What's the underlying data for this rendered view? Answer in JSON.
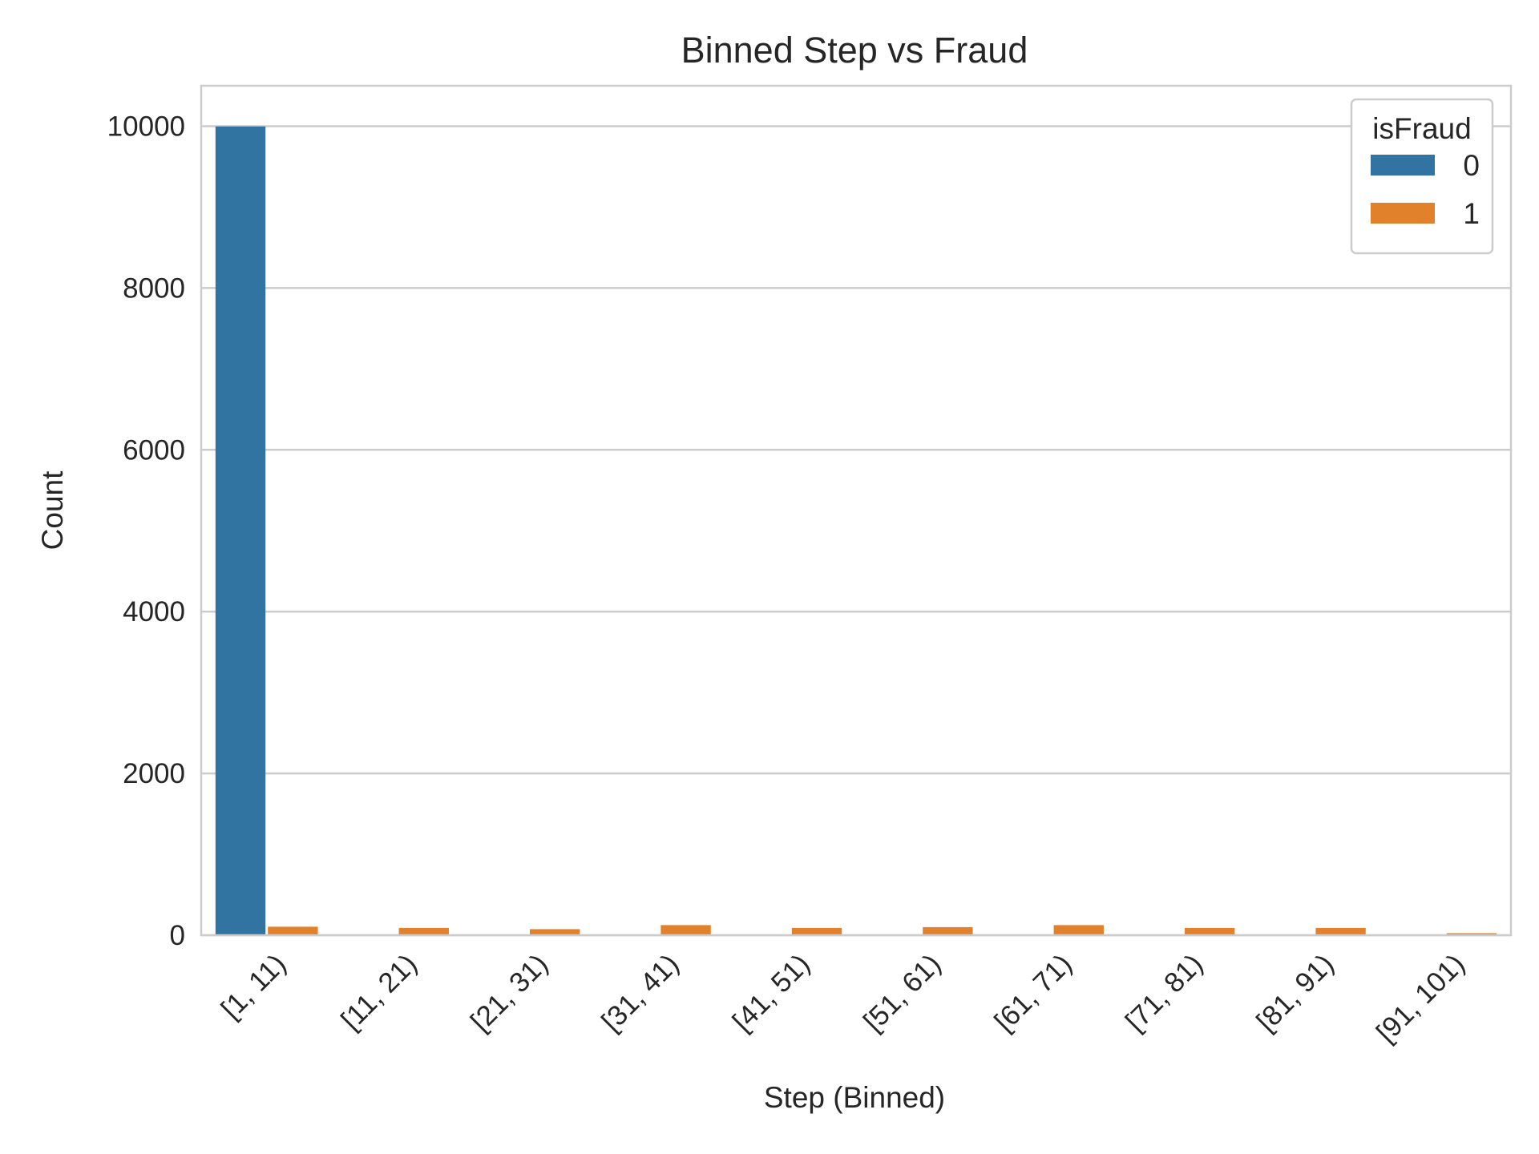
{
  "chart_data": {
    "type": "bar",
    "title": "Binned Step vs Fraud",
    "xlabel": "Step (Binned)",
    "ylabel": "Count",
    "categories": [
      "[1, 11)",
      "[11, 21)",
      "[21, 31)",
      "[31, 41)",
      "[41, 51)",
      "[51, 61)",
      "[61, 71)",
      "[71, 81)",
      "[81, 91)",
      "[91, 101)"
    ],
    "series": [
      {
        "name": "0",
        "color": "#3274a1",
        "values": [
          9997,
          0,
          0,
          0,
          0,
          0,
          0,
          0,
          0,
          0
        ]
      },
      {
        "name": "1",
        "color": "#e1812c",
        "values": [
          105,
          90,
          75,
          125,
          90,
          100,
          125,
          90,
          90,
          25
        ]
      }
    ],
    "ylim": [
      0,
      10500
    ],
    "yticks": [
      0,
      2000,
      4000,
      6000,
      8000,
      10000
    ],
    "grid": true,
    "legend": {
      "title": "isFraud",
      "placement": "top-right"
    }
  }
}
